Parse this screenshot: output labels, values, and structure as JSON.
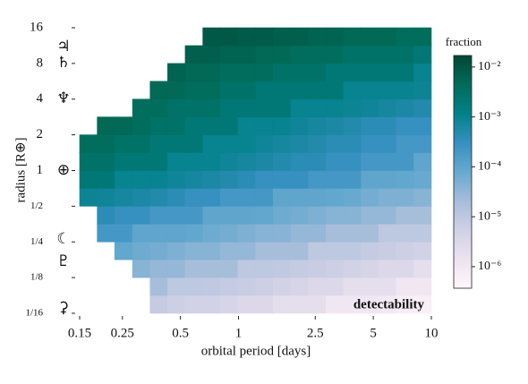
{
  "chart_data": {
    "type": "heatmap",
    "annotation": "detectability",
    "xlabel": "orbital period [days]",
    "ylabel": "radius [R⊕]",
    "colorbar_label": "fraction",
    "xscale": "log",
    "yscale": "log",
    "colorscale": "log",
    "xlim": [
      0.15,
      10
    ],
    "ylim": [
      0.0625,
      16
    ],
    "xticks": [
      0.15,
      0.25,
      0.5,
      1,
      2.5,
      5,
      10
    ],
    "yticks": [
      16,
      8,
      4,
      2,
      1,
      {
        "value": 0.5,
        "label": "1/2"
      },
      {
        "value": 0.25,
        "label": "1/4"
      },
      {
        "value": 0.125,
        "label": "1/8"
      },
      {
        "value": 0.0625,
        "label": "1/16"
      }
    ],
    "clim": [
      3.7e-07,
      0.017
    ],
    "cticks": [
      {
        "value": 0.01,
        "label": "10⁻²"
      },
      {
        "value": 0.001,
        "label": "10⁻³"
      },
      {
        "value": 0.0001,
        "label": "10⁻⁴"
      },
      {
        "value": 1e-05,
        "label": "10⁻⁵"
      },
      {
        "value": 1e-06,
        "label": "10⁻⁶"
      }
    ],
    "colors": [
      "#fff7fb",
      "#ece2f0",
      "#d0d1e6",
      "#a6bddb",
      "#67a9cf",
      "#3690c0",
      "#02818a",
      "#016c59",
      "#014636"
    ],
    "planet_symbols": [
      "♃",
      "♄",
      "♆",
      "⊕",
      "☾",
      "♇",
      "⚳"
    ],
    "xbins": [
      0.15,
      0.185,
      0.228,
      0.282,
      0.348,
      0.429,
      0.529,
      0.653,
      0.806,
      0.994,
      1.227,
      1.513,
      1.867,
      2.303,
      2.842,
      3.506,
      4.325,
      5.336,
      6.583,
      8.121,
      10
    ],
    "ybins": [
      0.0625,
      0.0884,
      0.125,
      0.177,
      0.25,
      0.354,
      0.5,
      0.707,
      1,
      1.414,
      2,
      2.828,
      4,
      5.657,
      8,
      11.31,
      16
    ],
    "z": [
      [
        null,
        null,
        null,
        null,
        8e-06,
        6e-06,
        5e-06,
        5e-06,
        4e-06,
        3e-06,
        3e-06,
        2e-06,
        2e-06,
        2e-06,
        1e-06,
        1e-06,
        1e-06,
        9e-07,
        7e-07,
        6e-07
      ],
      [
        null,
        null,
        null,
        null,
        2e-05,
        1e-05,
        1e-05,
        9e-06,
        8e-06,
        7e-06,
        6e-06,
        5e-06,
        4e-06,
        3e-06,
        3e-06,
        2e-06,
        2e-06,
        2e-06,
        1e-06,
        1e-06
      ],
      [
        null,
        null,
        null,
        4e-05,
        3e-05,
        3e-05,
        2e-05,
        2e-05,
        2e-05,
        1e-05,
        1e-05,
        9e-06,
        8e-06,
        7e-06,
        6e-06,
        5e-06,
        4e-06,
        3e-06,
        3e-06,
        2e-06
      ],
      [
        null,
        null,
        9e-05,
        7e-05,
        6e-05,
        5e-05,
        4e-05,
        4e-05,
        3e-05,
        3e-05,
        2e-05,
        2e-05,
        2e-05,
        1e-05,
        1e-05,
        1e-05,
        8e-06,
        7e-06,
        6e-06,
        5e-06
      ],
      [
        null,
        0.0002,
        0.0002,
        0.0001,
        0.0001,
        0.0001,
        9e-05,
        7e-05,
        6e-05,
        5e-05,
        4e-05,
        4e-05,
        3e-05,
        3e-05,
        2e-05,
        2e-05,
        2e-05,
        1e-05,
        1e-05,
        1e-05
      ],
      [
        null,
        0.0004,
        0.0003,
        0.0003,
        0.0002,
        0.0002,
        0.0002,
        0.0001,
        0.0001,
        0.0001,
        9e-05,
        7e-05,
        6e-05,
        5e-05,
        4e-05,
        4e-05,
        3e-05,
        3e-05,
        2e-05,
        2e-05
      ],
      [
        0.0009,
        0.0008,
        0.0007,
        0.0006,
        0.0005,
        0.0004,
        0.0003,
        0.0003,
        0.0002,
        0.0002,
        0.0002,
        0.0001,
        0.0001,
        0.0001,
        9e-05,
        8e-05,
        6e-05,
        5e-05,
        5e-05,
        4e-05
      ],
      [
        0.002,
        0.002,
        0.001,
        0.001,
        0.001,
        0.0008,
        0.0007,
        0.0006,
        0.0005,
        0.0004,
        0.0003,
        0.0003,
        0.0003,
        0.0002,
        0.0002,
        0.0002,
        0.0001,
        0.0001,
        9e-05,
        8e-05
      ],
      [
        0.003,
        0.003,
        0.002,
        0.002,
        0.002,
        0.001,
        0.001,
        0.001,
        0.0008,
        0.0007,
        0.0006,
        0.0005,
        0.0004,
        0.0004,
        0.0003,
        0.0003,
        0.0002,
        0.0002,
        0.0002,
        0.0001
      ],
      [
        0.004,
        0.004,
        0.003,
        0.003,
        0.002,
        0.002,
        0.002,
        0.001,
        0.001,
        0.001,
        0.0008,
        0.0007,
        0.0006,
        0.0005,
        0.0004,
        0.0004,
        0.0003,
        0.0003,
        0.0002,
        0.0002
      ],
      [
        null,
        0.005,
        0.005,
        0.004,
        0.003,
        0.003,
        0.002,
        0.002,
        0.002,
        0.001,
        0.001,
        0.001,
        0.0008,
        0.0007,
        0.0006,
        0.0005,
        0.0004,
        0.0004,
        0.0003,
        0.0003
      ],
      [
        null,
        null,
        null,
        0.004,
        0.004,
        0.003,
        0.003,
        0.003,
        0.002,
        0.002,
        0.002,
        0.002,
        0.001,
        0.001,
        0.001,
        0.0009,
        0.0008,
        0.0007,
        0.0006,
        0.0005
      ],
      [
        null,
        null,
        null,
        null,
        0.005,
        0.005,
        0.004,
        0.004,
        0.003,
        0.003,
        0.002,
        0.002,
        0.002,
        0.002,
        0.002,
        0.001,
        0.001,
        0.001,
        0.001,
        0.0009
      ],
      [
        null,
        null,
        null,
        null,
        null,
        0.006,
        0.005,
        0.005,
        0.004,
        0.004,
        0.004,
        0.003,
        0.003,
        0.003,
        0.002,
        0.002,
        0.002,
        0.002,
        0.002,
        0.001
      ],
      [
        null,
        null,
        null,
        null,
        null,
        null,
        0.007,
        0.007,
        0.006,
        0.006,
        0.005,
        0.005,
        0.004,
        0.004,
        0.004,
        0.003,
        0.003,
        0.003,
        0.003,
        0.002
      ],
      [
        null,
        null,
        null,
        null,
        null,
        null,
        null,
        0.009,
        0.009,
        0.008,
        0.008,
        0.007,
        0.007,
        0.006,
        0.006,
        0.005,
        0.005,
        0.005,
        0.004,
        0.004
      ]
    ]
  }
}
